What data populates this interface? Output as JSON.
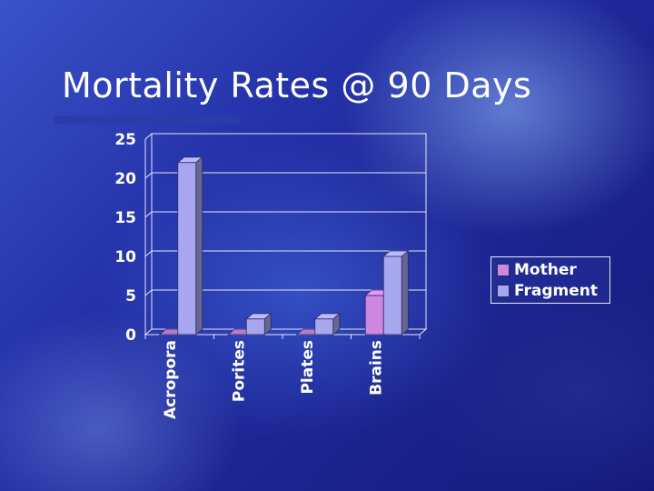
{
  "title": "Mortality Rates @ 90 Days",
  "colors": {
    "mother": "#cc88e0",
    "fragment": "#a8a6ee",
    "grid": "#e6e6f2"
  },
  "chart_data": {
    "type": "bar",
    "categories": [
      "Acropora",
      "Porites",
      "Plates",
      "Brains"
    ],
    "series": [
      {
        "name": "Mother",
        "values": [
          0,
          0,
          0,
          5
        ]
      },
      {
        "name": "Fragment",
        "values": [
          22,
          2,
          2,
          10
        ]
      }
    ],
    "ylim": [
      0,
      25
    ],
    "yticks": [
      "0",
      "5",
      "10",
      "15",
      "20",
      "25"
    ],
    "grid": true,
    "legend_position": "right"
  }
}
